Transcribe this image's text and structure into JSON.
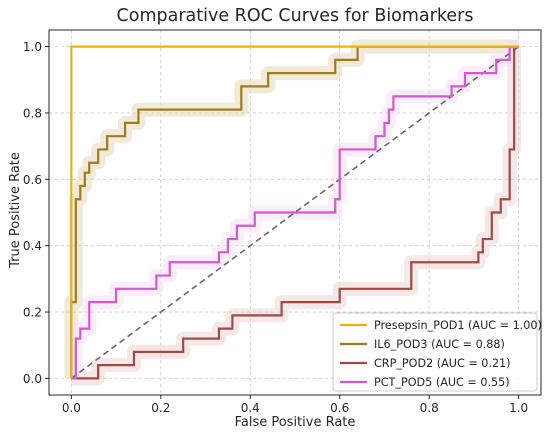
{
  "chart_data": {
    "type": "line",
    "title": "Comparative ROC Curves for Biomarkers",
    "xlabel": "False Positive Rate",
    "ylabel": "True Positive Rate",
    "xlim": [
      -0.05,
      1.05
    ],
    "ylim": [
      -0.05,
      1.05
    ],
    "xticks": [
      0.0,
      0.2,
      0.4,
      0.6,
      0.8,
      1.0
    ],
    "yticks": [
      0.0,
      0.2,
      0.4,
      0.6,
      0.8,
      1.0
    ],
    "xtick_labels": [
      "0.0",
      "0.2",
      "0.4",
      "0.6",
      "0.8",
      "1.0"
    ],
    "ytick_labels": [
      "0.0",
      "0.2",
      "0.4",
      "0.6",
      "0.8",
      "1.0"
    ],
    "grid": true,
    "legend_position": "lower-right",
    "diagonal": {
      "x": [
        0,
        1
      ],
      "y": [
        0,
        1
      ],
      "color": "#666666",
      "style": "dashed"
    },
    "series": [
      {
        "name": "Presepsin_POD1 (AUC = 1.00)",
        "color": "#e8b400",
        "x": [
          0,
          0,
          0,
          1
        ],
        "y": [
          0,
          0.5,
          1.0,
          1.0
        ]
      },
      {
        "name": "IL6_POD3 (AUC = 0.88)",
        "color": "#a07a20",
        "band_color": "#e8d9b8",
        "x": [
          0,
          0,
          0.01,
          0.01,
          0.02,
          0.02,
          0.03,
          0.03,
          0.04,
          0.04,
          0.06,
          0.06,
          0.08,
          0.08,
          0.12,
          0.12,
          0.15,
          0.15,
          0.21,
          0.21,
          0.38,
          0.38,
          0.44,
          0.44,
          0.59,
          0.59,
          0.64,
          0.64,
          1.0
        ],
        "y": [
          0,
          0.23,
          0.23,
          0.54,
          0.54,
          0.58,
          0.58,
          0.62,
          0.62,
          0.65,
          0.65,
          0.69,
          0.69,
          0.73,
          0.73,
          0.77,
          0.77,
          0.81,
          0.81,
          0.81,
          0.81,
          0.88,
          0.88,
          0.92,
          0.92,
          0.96,
          0.96,
          1.0,
          1.0
        ]
      },
      {
        "name": "CRP_POD2 (AUC = 0.21)",
        "color": "#a04a45",
        "band_color": "#f0d5d5",
        "x": [
          0,
          0.06,
          0.06,
          0.14,
          0.14,
          0.25,
          0.25,
          0.33,
          0.33,
          0.36,
          0.36,
          0.47,
          0.47,
          0.6,
          0.6,
          0.76,
          0.76,
          0.91,
          0.91,
          0.92,
          0.92,
          0.94,
          0.94,
          0.96,
          0.96,
          0.98,
          0.98,
          0.99,
          0.99,
          1.0
        ],
        "y": [
          0,
          0,
          0.04,
          0.04,
          0.08,
          0.08,
          0.12,
          0.12,
          0.15,
          0.15,
          0.19,
          0.19,
          0.23,
          0.23,
          0.27,
          0.27,
          0.35,
          0.35,
          0.38,
          0.38,
          0.42,
          0.42,
          0.5,
          0.5,
          0.54,
          0.54,
          0.69,
          0.69,
          1.0,
          1.0
        ]
      },
      {
        "name": "PCT_POD5 (AUC = 0.55)",
        "color": "#d05ad0",
        "band_color": "#f7dff7",
        "x": [
          0,
          0.01,
          0.01,
          0.02,
          0.02,
          0.04,
          0.04,
          0.1,
          0.1,
          0.19,
          0.19,
          0.22,
          0.22,
          0.33,
          0.33,
          0.35,
          0.35,
          0.37,
          0.37,
          0.41,
          0.41,
          0.59,
          0.59,
          0.6,
          0.6,
          0.68,
          0.68,
          0.7,
          0.7,
          0.71,
          0.71,
          0.72,
          0.72,
          0.85,
          0.85,
          0.88,
          0.88,
          0.95,
          0.95,
          0.98,
          0.98,
          1.0
        ],
        "y": [
          0,
          0,
          0.12,
          0.12,
          0.15,
          0.15,
          0.23,
          0.23,
          0.27,
          0.27,
          0.31,
          0.31,
          0.35,
          0.35,
          0.38,
          0.38,
          0.42,
          0.42,
          0.46,
          0.46,
          0.5,
          0.5,
          0.54,
          0.54,
          0.69,
          0.69,
          0.73,
          0.73,
          0.77,
          0.77,
          0.81,
          0.81,
          0.85,
          0.85,
          0.88,
          0.88,
          0.92,
          0.92,
          0.96,
          0.96,
          1.0,
          1.0
        ]
      }
    ]
  }
}
